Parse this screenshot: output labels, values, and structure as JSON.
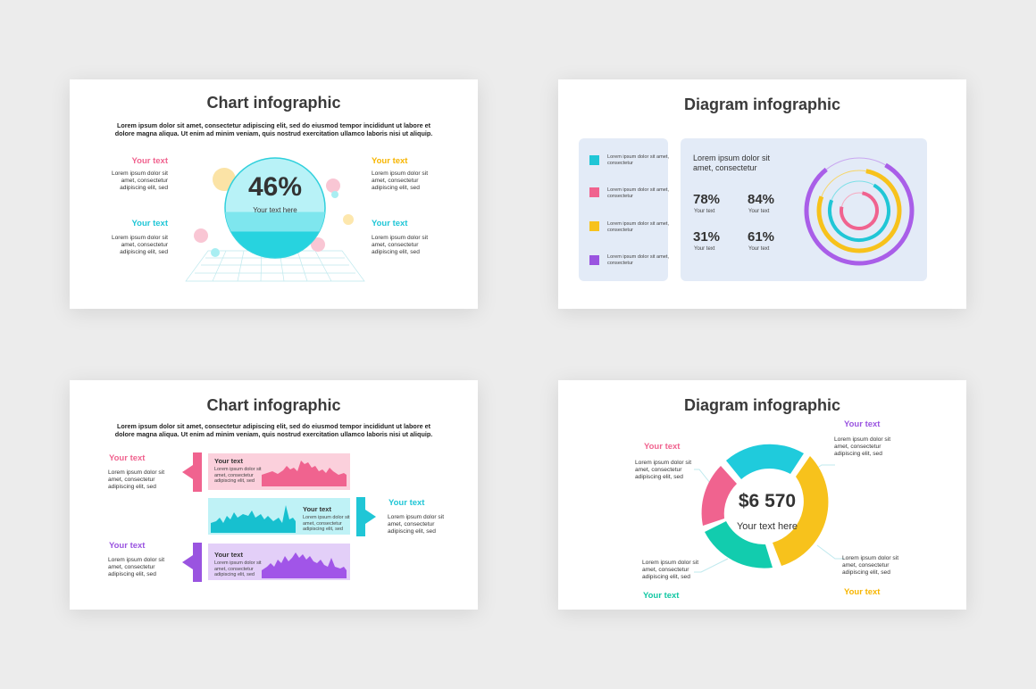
{
  "colors": {
    "pink": "#f0638f",
    "teal": "#20c6d6",
    "yellow": "#f7b500",
    "purple": "#9a54e0",
    "green": "#12c7a3"
  },
  "slide1": {
    "title": "Chart infographic",
    "desc": "Lorem ipsum dolor sit amet, consectetur adipiscing elit, sed do eiusmod tempor incididunt ut labore et dolore magna aliqua. Ut enim ad minim veniam, quis nostrud exercitation ullamco laboris nisi ut aliquip.",
    "percent": "46%",
    "percent_value": 46,
    "caption": "Your text here",
    "labels": [
      {
        "label": "Your text",
        "text": "Lorem ipsum dolor sit amet, consectetur adipiscing elit, sed"
      },
      {
        "label": "Your text",
        "text": "Lorem ipsum dolor sit amet, consectetur adipiscing elit, sed"
      },
      {
        "label": "Your text",
        "text": "Lorem ipsum dolor sit amet, consectetur adipiscing elit, sed"
      },
      {
        "label": "Your text",
        "text": "Lorem ipsum dolor sit amet, consectetur adipiscing elit, sed"
      }
    ]
  },
  "slide2": {
    "title": "Diagram infographic",
    "legend": [
      {
        "text": "Lorem ipsum dolor sit amet, consectetur"
      },
      {
        "text": "Lorem ipsum dolor sit amet, consectetur"
      },
      {
        "text": "Lorem ipsum dolor sit amet, consectetur"
      },
      {
        "text": "Lorem ipsum dolor sit amet, consectetur"
      }
    ],
    "heading": "Lorem ipsum dolor sit amet, consectetur",
    "stats": [
      {
        "value": "78%",
        "label": "Your text"
      },
      {
        "value": "84%",
        "label": "Your text"
      },
      {
        "value": "31%",
        "label": "Your text"
      },
      {
        "value": "61%",
        "label": "Your text"
      }
    ]
  },
  "slide3": {
    "title": "Chart infographic",
    "desc": "Lorem ipsum dolor sit amet, consectetur adipiscing elit, sed do eiusmod tempor incididunt ut labore et dolore magna aliqua. Ut enim ad minim veniam, quis nostrud exercitation ullamco laboris nisi ut aliquip.",
    "rows": [
      {
        "label": "Your text",
        "text": "Lorem ipsum dolor sit amet, consectetur adipiscing elit, sed",
        "band_title": "Your text",
        "band_text": "Lorem ipsum dolor sit amet, consectetur adipiscing elit, sed"
      },
      {
        "label": "Your text",
        "text": "Lorem ipsum dolor sit amet, consectetur adipiscing elit, sed",
        "band_title": "Your text",
        "band_text": "Lorem ipsum dolor sit amet, consectetur adipiscing elit, sed"
      },
      {
        "label": "Your text",
        "text": "Lorem ipsum dolor sit amet, consectetur adipiscing elit, sed",
        "band_title": "Your text",
        "band_text": "Lorem ipsum dolor sit amet, consectetur adipiscing elit, sed"
      }
    ]
  },
  "slide4": {
    "title": "Diagram infographic",
    "amount": "$6 570",
    "caption": "Your text here",
    "labels": [
      {
        "label": "Your text",
        "text": "Lorem ipsum dolor sit amet, consectetur adipiscing elit, sed"
      },
      {
        "label": "Your text",
        "text": "Lorem ipsum dolor sit amet, consectetur adipiscing elit, sed"
      },
      {
        "label": "Your text",
        "text": "Lorem ipsum dolor sit amet, consectetur adipiscing elit, sed"
      },
      {
        "label": "Your text",
        "text": "Lorem ipsum dolor sit amet, consectetur adipiscing elit, sed"
      }
    ]
  }
}
